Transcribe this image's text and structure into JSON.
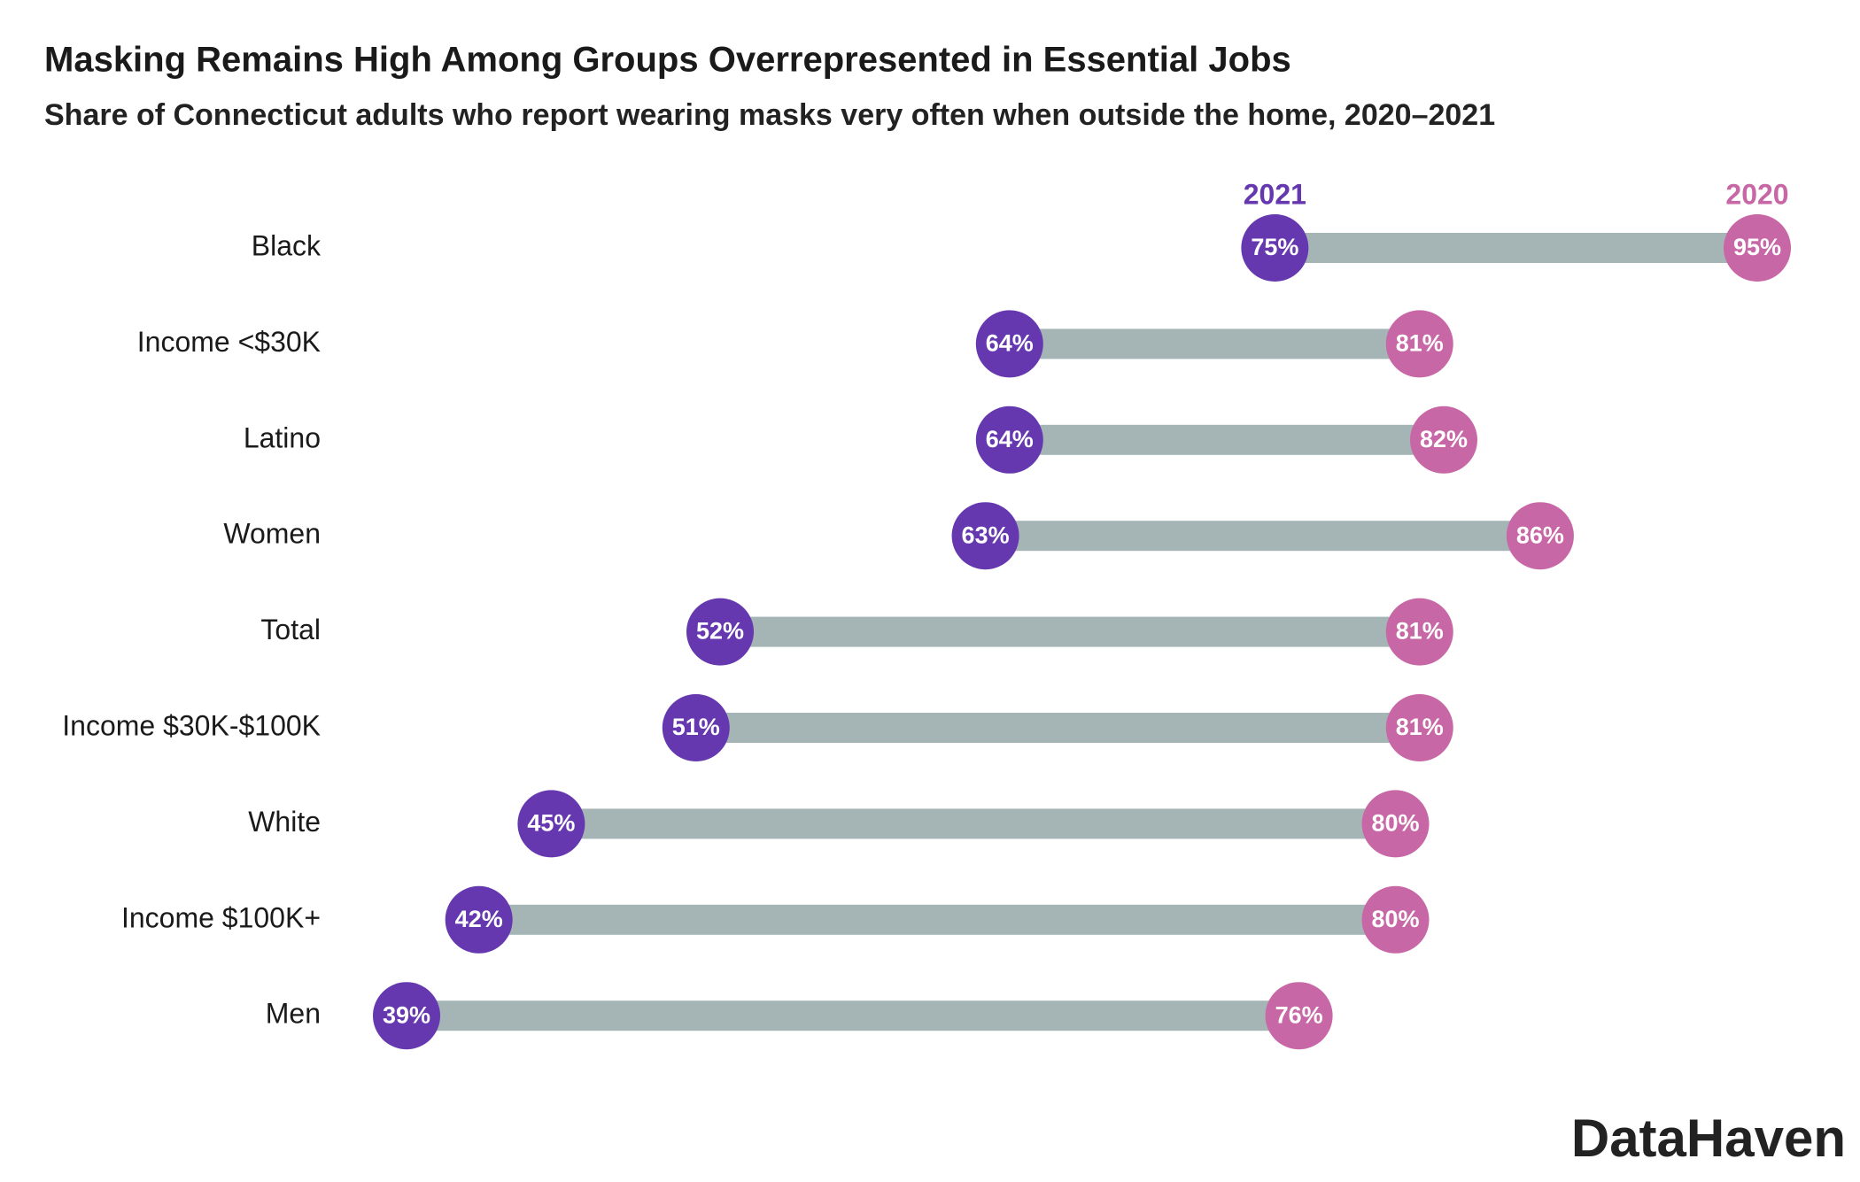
{
  "chart_data": {
    "type": "dumbbell",
    "title": "Masking Remains High Among Groups Overrepresented in Essential Jobs",
    "subtitle": "Share of Connecticut adults who report wearing masks very often when outside the home, 2020–2021",
    "categories": [
      "Black",
      "Income <$30K",
      "Latino",
      "Women",
      "Total",
      "Income $30K-$100K",
      "White",
      "Income $100K+",
      "Men"
    ],
    "series": [
      {
        "name": "2021",
        "color": "#6538b0",
        "values": [
          75,
          64,
          64,
          63,
          52,
          51,
          45,
          42,
          39
        ],
        "value_labels": [
          "75%",
          "64%",
          "64%",
          "63%",
          "52%",
          "51%",
          "45%",
          "42%",
          "39%"
        ]
      },
      {
        "name": "2020",
        "color": "#c867a6",
        "values": [
          95,
          81,
          82,
          86,
          81,
          81,
          80,
          80,
          76
        ],
        "value_labels": [
          "95%",
          "81%",
          "82%",
          "86%",
          "81%",
          "81%",
          "80%",
          "80%",
          "76%"
        ]
      }
    ],
    "connector_color": "#a5b5b6",
    "brand": "DataHaven"
  }
}
